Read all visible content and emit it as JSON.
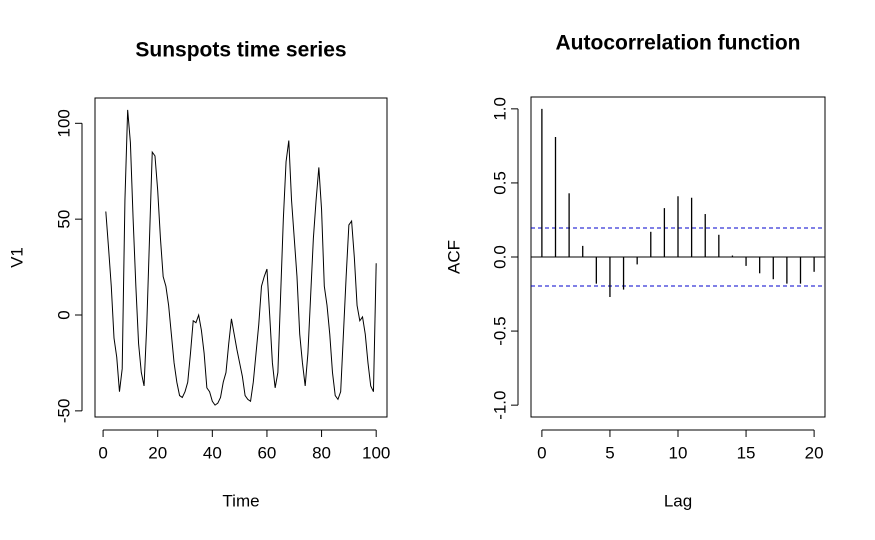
{
  "chart_data": [
    {
      "type": "line",
      "title": "Sunspots time series",
      "x_label": "Time",
      "y_label": "V1",
      "x": [
        1,
        2,
        3,
        4,
        5,
        6,
        7,
        8,
        9,
        10,
        11,
        12,
        13,
        14,
        15,
        16,
        17,
        18,
        19,
        20,
        21,
        22,
        23,
        24,
        25,
        26,
        27,
        28,
        29,
        30,
        31,
        32,
        33,
        34,
        35,
        36,
        37,
        38,
        39,
        40,
        41,
        42,
        43,
        44,
        45,
        46,
        47,
        48,
        49,
        50,
        51,
        52,
        53,
        54,
        55,
        56,
        57,
        58,
        59,
        60,
        61,
        62,
        63,
        64,
        65,
        66,
        67,
        68,
        69,
        70,
        71,
        72,
        73,
        74,
        75,
        76,
        77,
        78,
        79,
        80,
        81,
        82,
        83,
        84,
        85,
        86,
        87,
        88,
        89,
        90,
        91,
        92,
        93,
        94,
        95,
        96,
        97,
        98,
        99,
        100
      ],
      "values": [
        54,
        35,
        15,
        -12,
        -22,
        -40,
        -28,
        60,
        107,
        90,
        50,
        15,
        -15,
        -30,
        -37,
        -5,
        40,
        85,
        83,
        65,
        40,
        20,
        15,
        5,
        -10,
        -25,
        -35,
        -42,
        -43,
        -40,
        -35,
        -20,
        -3,
        -4,
        0,
        -8,
        -20,
        -38,
        -40,
        -45,
        -47,
        -46,
        -43,
        -35,
        -30,
        -15,
        -2,
        -10,
        -18,
        -25,
        -32,
        -42,
        -44,
        -45,
        -35,
        -20,
        -5,
        15,
        20,
        24,
        0,
        -25,
        -38,
        -30,
        10,
        50,
        80,
        91,
        60,
        40,
        20,
        -10,
        -25,
        -37,
        -20,
        10,
        40,
        60,
        77,
        55,
        15,
        5,
        -10,
        -30,
        -42,
        -44,
        -40,
        -10,
        20,
        47,
        49,
        30,
        5,
        -3,
        -1,
        -10,
        -25,
        -37,
        -40,
        27
      ],
      "color": "#000000",
      "xlim": [
        -2.96,
        103.96
      ],
      "xticks": [
        0,
        20,
        40,
        60,
        80,
        100
      ],
      "ylim": [
        -53.2,
        113.2
      ],
      "yticks": [
        -50,
        0,
        50,
        100
      ]
    },
    {
      "type": "bar",
      "title": "Autocorrelation function",
      "x_label": "Lag",
      "y_label": "ACF",
      "x": [
        0,
        1,
        2,
        3,
        4,
        5,
        6,
        7,
        8,
        9,
        10,
        11,
        12,
        13,
        14,
        15,
        16,
        17,
        18,
        19,
        20
      ],
      "values": [
        1.0,
        0.81,
        0.43,
        0.075,
        -0.18,
        -0.27,
        -0.22,
        -0.05,
        0.17,
        0.33,
        0.41,
        0.4,
        0.29,
        0.15,
        0.01,
        -0.06,
        -0.11,
        -0.15,
        -0.18,
        -0.18,
        -0.1
      ],
      "color": "#000000",
      "ci": 0.196,
      "ci_color": "#0000cc",
      "xlim": [
        -0.8,
        20.8
      ],
      "xticks": [
        0,
        5,
        10,
        15,
        20
      ],
      "ylim": [
        -1.08,
        1.08
      ],
      "yticks": [
        {
          "value": -1,
          "label": "-1.0"
        },
        {
          "value": -0.5,
          "label": "-0.5"
        },
        {
          "value": 0,
          "label": "0.0"
        },
        {
          "value": 0.5,
          "label": "0.5"
        },
        {
          "value": 1,
          "label": "1.0"
        }
      ]
    }
  ]
}
